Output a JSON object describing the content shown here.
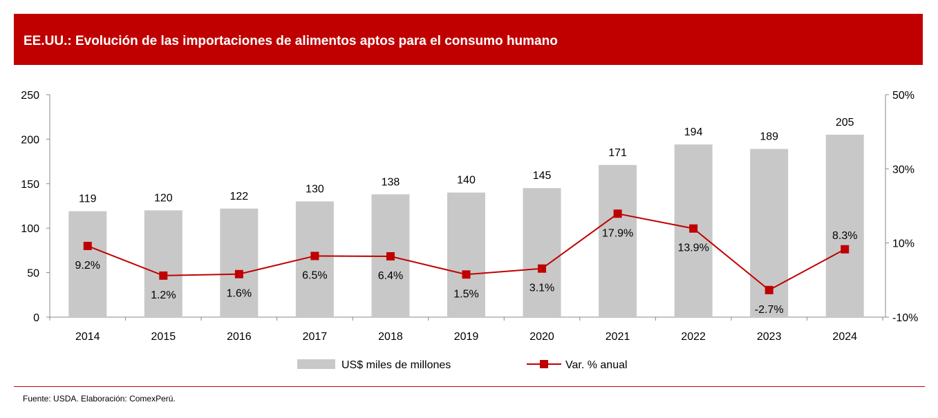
{
  "title": "EE.UU.: Evolución de las importaciones de alimentos aptos para el consumo humano",
  "source": "Fuente: USDA. Elaboración: ComexPerú.",
  "colors": {
    "title_bar": "#C00000",
    "bars": "#C8C8C8",
    "line": "#C00000"
  },
  "chart_data": {
    "type": "bar+line",
    "categories": [
      "2014",
      "2015",
      "2016",
      "2017",
      "2018",
      "2019",
      "2020",
      "2021",
      "2022",
      "2023",
      "2024"
    ],
    "series": [
      {
        "name": "US$ miles de millones",
        "type": "bar",
        "axis": "left",
        "values": [
          119,
          120,
          122,
          130,
          138,
          140,
          145,
          171,
          194,
          189,
          205
        ],
        "labels": [
          "119",
          "120",
          "122",
          "130",
          "138",
          "140",
          "145",
          "171",
          "194",
          "189",
          "205"
        ]
      },
      {
        "name": "Var. % anual",
        "type": "line",
        "axis": "right",
        "marker": "square",
        "values": [
          9.2,
          1.2,
          1.6,
          6.5,
          6.4,
          1.5,
          3.1,
          17.9,
          13.9,
          -2.7,
          8.3
        ],
        "labels": [
          "9.2%",
          "1.2%",
          "1.6%",
          "6.5%",
          "6.4%",
          "1.5%",
          "3.1%",
          "17.9%",
          "13.9%",
          "-2.7%",
          "8.3%"
        ]
      }
    ],
    "y_left": {
      "range": [
        0,
        250
      ],
      "ticks": [
        "0",
        "50",
        "100",
        "150",
        "200",
        "250"
      ]
    },
    "y_right": {
      "range": [
        -10,
        50
      ],
      "ticks": [
        "-10%",
        "10%",
        "30%",
        "50%"
      ]
    },
    "grid": false,
    "legend": "bottom"
  }
}
